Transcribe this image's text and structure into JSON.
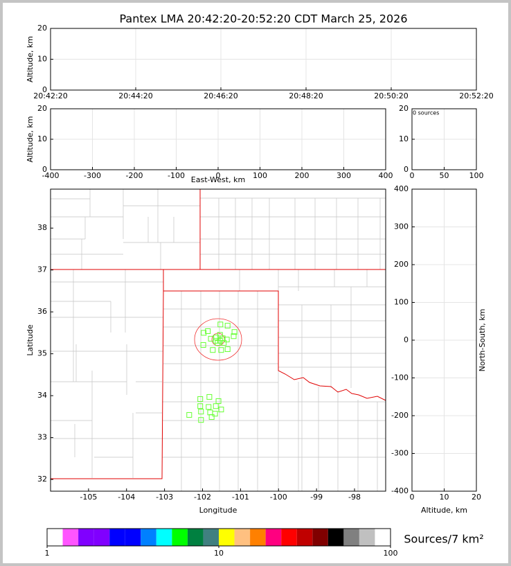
{
  "chart_data": [
    {
      "type": "scatter",
      "title": "Pantex LMA 20:42:20-20:52:20 CDT March 25, 2026",
      "y_label": "Altitude, km",
      "xlim": [
        "20:42:20",
        "20:52:20"
      ],
      "xticks": [
        "20:42:20",
        "20:44:20",
        "20:46:20",
        "20:48:20",
        "20:50:20",
        "20:52:20"
      ],
      "ylim": [
        0,
        20
      ],
      "yticks": [
        0,
        10,
        20
      ],
      "grid": true
    },
    {
      "type": "scatter",
      "x_label": "East-West, km",
      "y_label": "Altitude, km",
      "xlim": [
        -400,
        400
      ],
      "xticks": [
        -400,
        -300,
        -200,
        -100,
        0,
        100,
        200,
        300,
        400
      ],
      "ylim": [
        0,
        20
      ],
      "yticks": [
        0,
        10,
        20
      ],
      "grid": true
    },
    {
      "type": "scatter",
      "annotation": "0 sources",
      "xlim": [
        0,
        100
      ],
      "xticks": [
        0,
        50,
        100
      ],
      "ylim": [
        0,
        20
      ],
      "yticks": [
        0,
        10,
        20
      ],
      "grid": true
    },
    {
      "type": "map",
      "x_label": "Longitude",
      "y_label": "Latitude",
      "xlim": [
        -106,
        -97.18
      ],
      "xticks": [
        -105,
        -104,
        -103,
        -102,
        -101,
        -100,
        -99,
        -98
      ],
      "ylim": [
        31.72,
        38.93
      ],
      "yticks": [
        32,
        33,
        34,
        35,
        36,
        37,
        38
      ],
      "grid": false,
      "marker_color": "#66ff33",
      "x": [
        -101.53,
        -101.34,
        -101.97,
        -101.86,
        -101.16,
        -101.54,
        -101.64,
        -101.18,
        -101.78,
        -101.47,
        -101.36,
        -101.65,
        -101.54,
        -101.6,
        -101.98,
        -101.44,
        -101.73,
        -101.51,
        -101.34,
        -102.06,
        -101.82,
        -101.58,
        -102.06,
        -101.84,
        -101.65,
        -102.04,
        -101.8,
        -101.51,
        -102.35,
        -101.67,
        -101.76,
        -102.04
      ],
      "y": [
        35.7,
        35.67,
        35.5,
        35.54,
        35.52,
        35.45,
        35.39,
        35.42,
        35.36,
        35.37,
        35.34,
        35.31,
        35.31,
        35.26,
        35.21,
        35.26,
        35.09,
        35.09,
        35.11,
        33.92,
        33.97,
        33.87,
        33.75,
        33.73,
        33.75,
        33.62,
        33.6,
        33.67,
        33.54,
        33.57,
        33.49,
        33.42
      ]
    },
    {
      "type": "scatter",
      "x_label": "Altitude, km",
      "y_label": "North-South, km",
      "xlim": [
        0,
        20
      ],
      "xticks": [
        0,
        10,
        20
      ],
      "ylim": [
        -400,
        400
      ],
      "yticks": [
        -400,
        -300,
        -200,
        -100,
        0,
        100,
        200,
        300,
        400
      ],
      "grid": true
    },
    {
      "type": "colorbar",
      "label": "Sources/7 km²",
      "log_scale": true,
      "xlim": [
        1,
        100
      ],
      "xticks": [
        1,
        10,
        100
      ],
      "colors": [
        "#ffffff",
        "#ff55ff",
        "#8000ff",
        "#8000ff",
        "#0000ff",
        "#0000ff",
        "#0080ff",
        "#00ffff",
        "#00ff00",
        "#008040",
        "#408080",
        "#ffff00",
        "#ffc080",
        "#ff8000",
        "#ff0080",
        "#ff0000",
        "#c00000",
        "#800000",
        "#000000",
        "#808080",
        "#c0c0c0",
        "#ffffff"
      ]
    }
  ]
}
